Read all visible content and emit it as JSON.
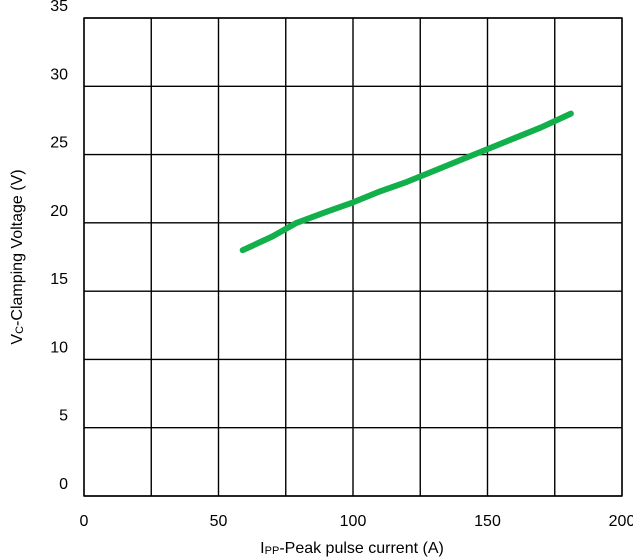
{
  "chart_data": {
    "type": "line",
    "xlabel_prefix": "I",
    "xlabel_sub": "PP",
    "xlabel_rest": "-Peak pulse current (A)",
    "ylabel_prefix": "V",
    "ylabel_sub": "C",
    "ylabel_rest": "-Clamping Voltage (V)",
    "xlim": [
      0,
      200
    ],
    "ylim": [
      0,
      35
    ],
    "x_ticks": [
      0,
      50,
      100,
      150,
      200
    ],
    "y_ticks": [
      0,
      5,
      10,
      15,
      20,
      25,
      30,
      35
    ],
    "x_grid": [
      0,
      25,
      50,
      75,
      100,
      125,
      150,
      175,
      200
    ],
    "y_grid": [
      0,
      5,
      10,
      15,
      20,
      25,
      30,
      35
    ],
    "grid": true,
    "series": [
      {
        "color": "#12b04a",
        "x": [
          59,
          70,
          79,
          90,
          100,
          110,
          120,
          130,
          140,
          150,
          160,
          170,
          181
        ],
        "y": [
          18.0,
          19.0,
          20.0,
          20.8,
          21.5,
          22.3,
          23.0,
          23.8,
          24.6,
          25.4,
          26.2,
          27.0,
          28.0
        ]
      }
    ]
  }
}
